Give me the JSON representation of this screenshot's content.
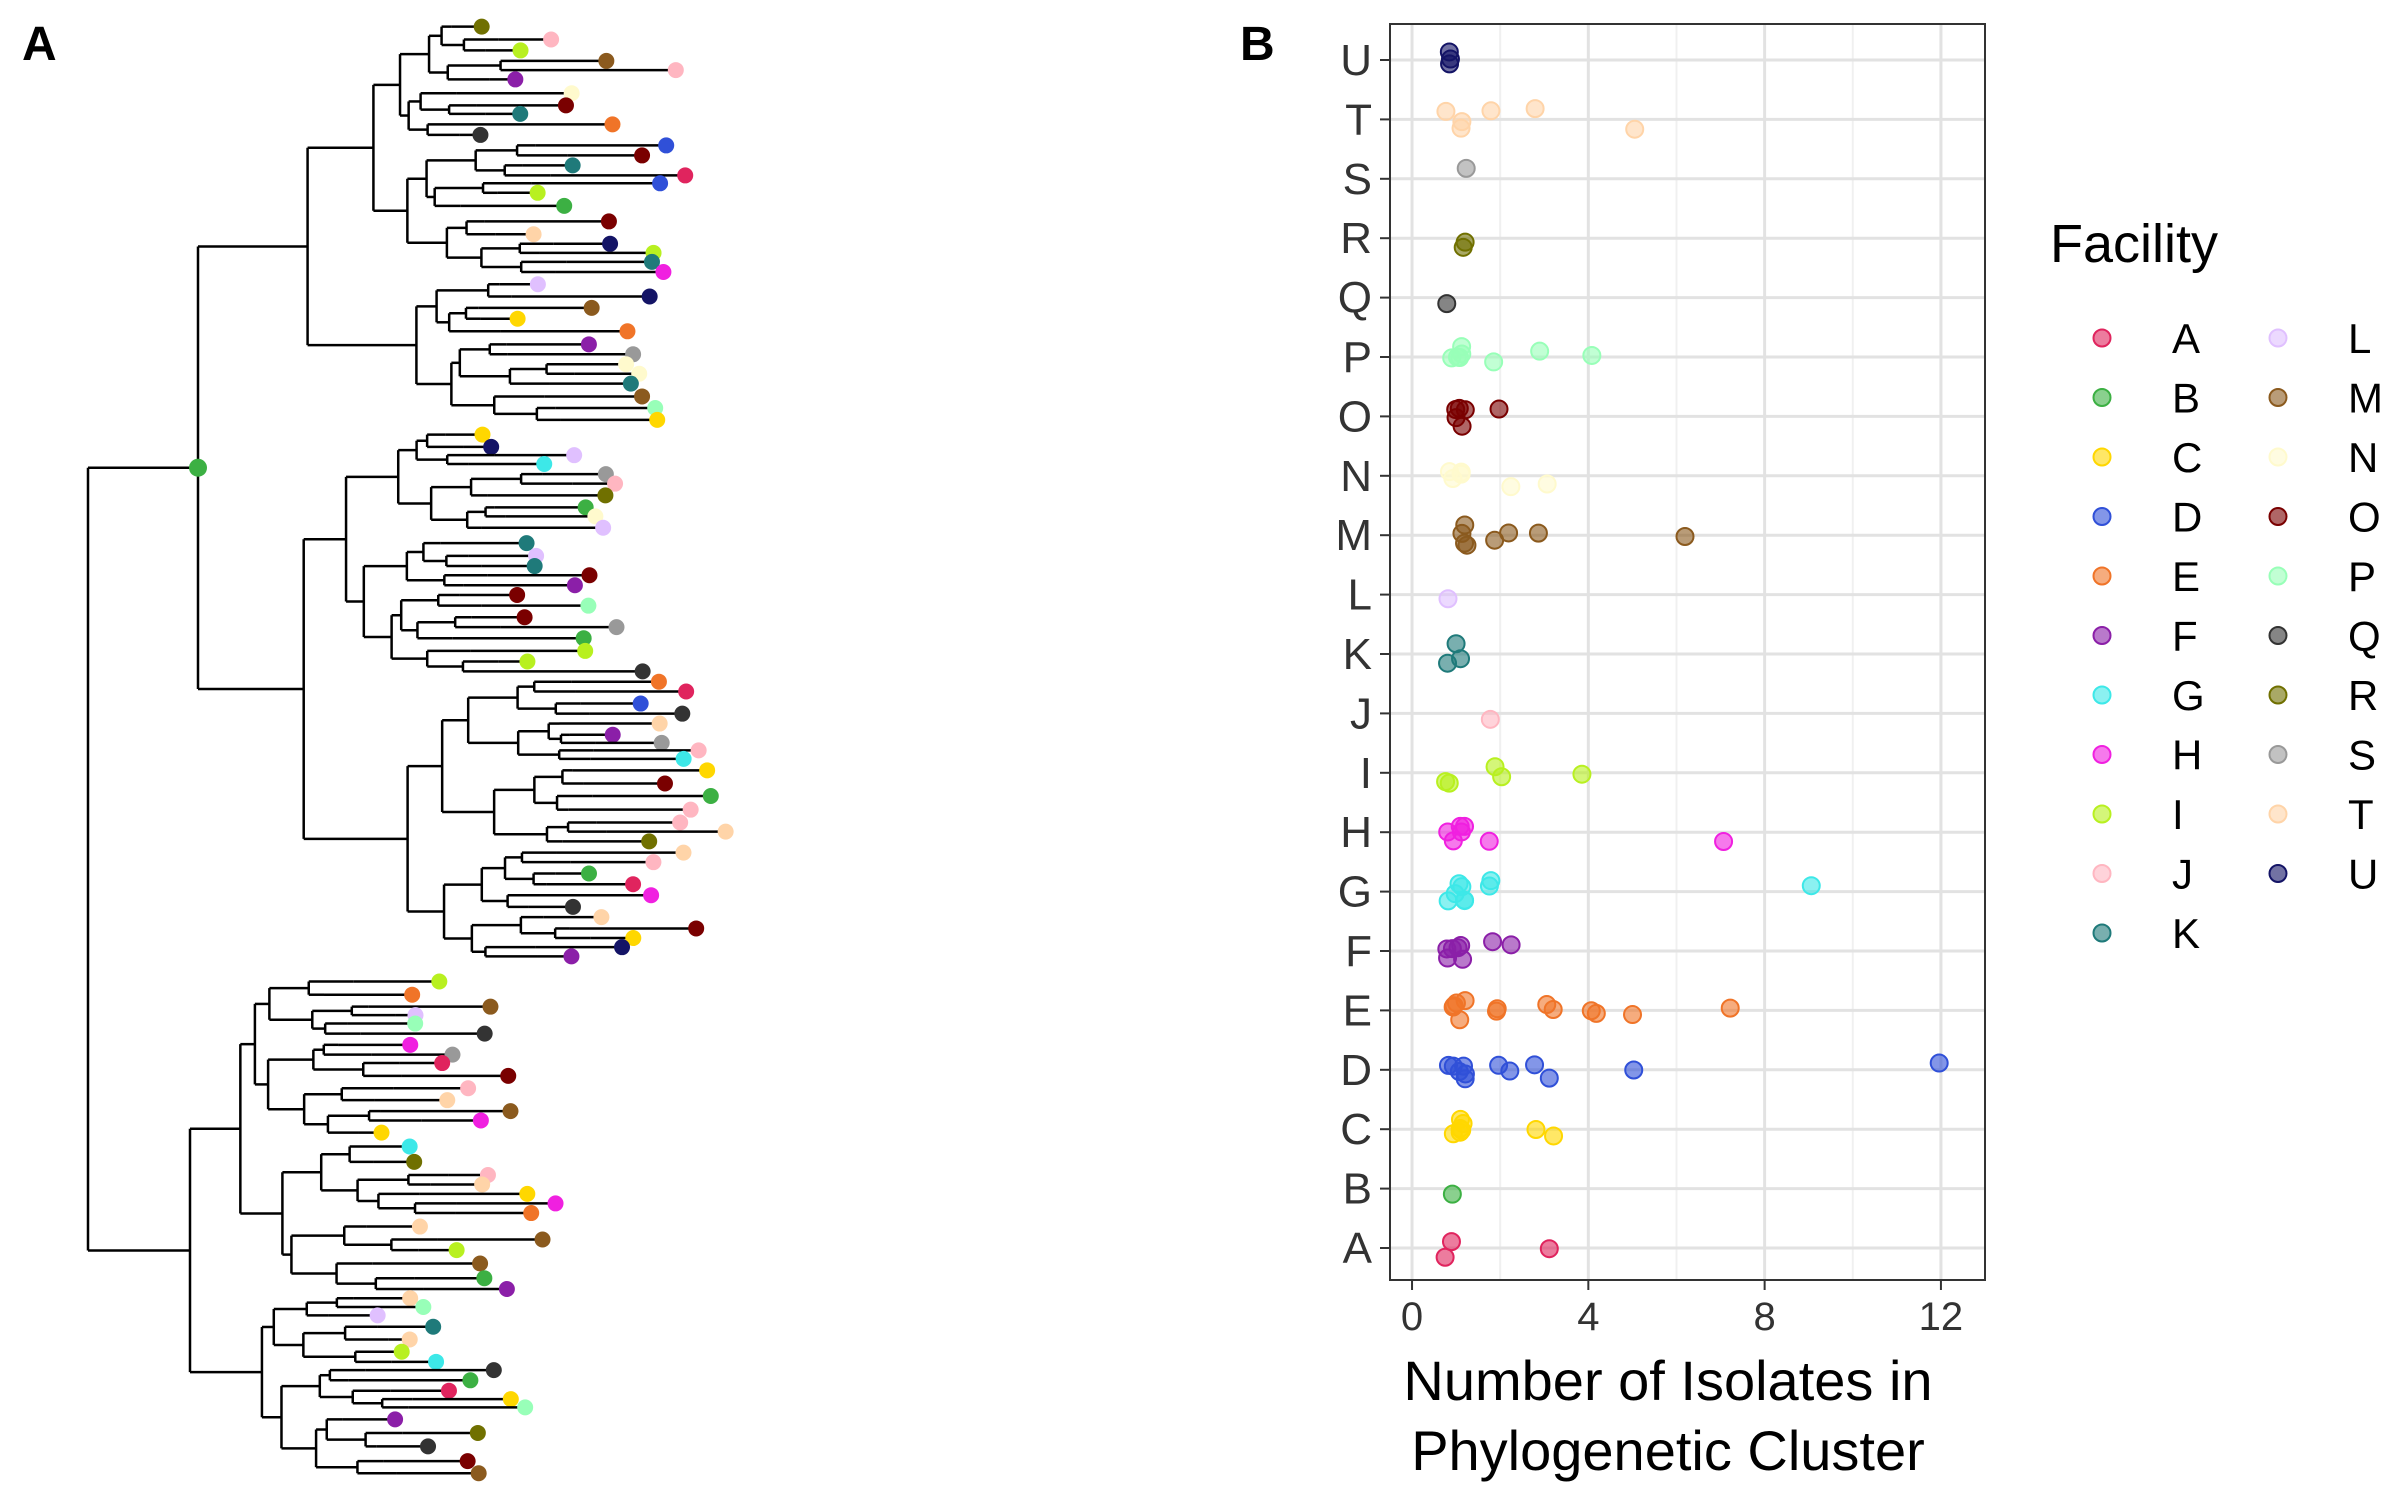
{
  "panels": {
    "a_label": "A",
    "b_label": "B"
  },
  "tree_tip_colors": [
    "#E0245E",
    "#3CB043",
    "#FFD700",
    "#3050D8",
    "#F07428",
    "#8B1FA8",
    "#3DE8E8",
    "#F020E0",
    "#B8F020",
    "#FFB6C1",
    "#1F7A7A",
    "#E0C0FF",
    "#8B5A1E",
    "#FFFACD",
    "#7A0000",
    "#98FFB8",
    "#333333",
    "#707000",
    "#999999",
    "#FFD4A8",
    "#141466"
  ],
  "chart_data": {
    "type": "scatter",
    "title": "",
    "xlabel_line1": "Number of Isolates in",
    "xlabel_line2": "Phylogenetic Cluster",
    "ylabel": "",
    "xlim": [
      -0.5,
      13
    ],
    "x_ticks": [
      0,
      4,
      8,
      12
    ],
    "x_tick_labels": [
      "0",
      "4",
      "8",
      "12"
    ],
    "categories": [
      "A",
      "B",
      "C",
      "D",
      "E",
      "F",
      "G",
      "H",
      "I",
      "J",
      "K",
      "L",
      "M",
      "N",
      "O",
      "P",
      "Q",
      "R",
      "S",
      "T",
      "U"
    ],
    "grid": true,
    "legend_position": "right",
    "legend_title": "Facility",
    "series": [
      {
        "name": "A",
        "color": "#E0245E",
        "x": [
          1,
          1,
          3
        ]
      },
      {
        "name": "B",
        "color": "#3CB043",
        "x": [
          1
        ]
      },
      {
        "name": "C",
        "color": "#FFD700",
        "x": [
          1,
          1,
          1,
          1,
          1,
          1,
          3,
          3
        ]
      },
      {
        "name": "D",
        "color": "#3050D8",
        "x": [
          1,
          1,
          1,
          1,
          1,
          1,
          2,
          2,
          3,
          3,
          5,
          12
        ]
      },
      {
        "name": "E",
        "color": "#F07428",
        "x": [
          1,
          1,
          1,
          1,
          1,
          2,
          2,
          3,
          3,
          4,
          4,
          5,
          7
        ]
      },
      {
        "name": "F",
        "color": "#8B1FA8",
        "x": [
          1,
          1,
          1,
          1,
          1,
          1,
          2,
          2
        ]
      },
      {
        "name": "G",
        "color": "#3DE8E8",
        "x": [
          1,
          1,
          1,
          1,
          1,
          1,
          2,
          2,
          9
        ]
      },
      {
        "name": "H",
        "color": "#F020E0",
        "x": [
          1,
          1,
          1,
          1,
          1,
          2,
          7
        ]
      },
      {
        "name": "I",
        "color": "#B8F020",
        "x": [
          1,
          1,
          2,
          2,
          4
        ]
      },
      {
        "name": "J",
        "color": "#FFB6C1",
        "x": [
          2
        ]
      },
      {
        "name": "K",
        "color": "#1F7A7A",
        "x": [
          1,
          1,
          1
        ]
      },
      {
        "name": "L",
        "color": "#E0C0FF",
        "x": [
          1
        ]
      },
      {
        "name": "M",
        "color": "#8B5A1E",
        "x": [
          1,
          1,
          1,
          1,
          2,
          2,
          3,
          6
        ]
      },
      {
        "name": "N",
        "color": "#FFFACD",
        "x": [
          1,
          1,
          1,
          1,
          2,
          3
        ]
      },
      {
        "name": "O",
        "color": "#7A0000",
        "x": [
          1,
          1,
          1,
          1,
          1,
          2
        ]
      },
      {
        "name": "P",
        "color": "#98FFB8",
        "x": [
          1,
          1,
          1,
          1,
          1,
          2,
          3,
          4
        ]
      },
      {
        "name": "Q",
        "color": "#333333",
        "x": [
          1
        ]
      },
      {
        "name": "R",
        "color": "#707000",
        "x": [
          1,
          1
        ]
      },
      {
        "name": "S",
        "color": "#999999",
        "x": [
          1
        ]
      },
      {
        "name": "T",
        "color": "#FFD4A8",
        "x": [
          1,
          1,
          1,
          2,
          3,
          5
        ]
      },
      {
        "name": "U",
        "color": "#141466",
        "x": [
          1,
          1,
          1
        ]
      }
    ]
  }
}
